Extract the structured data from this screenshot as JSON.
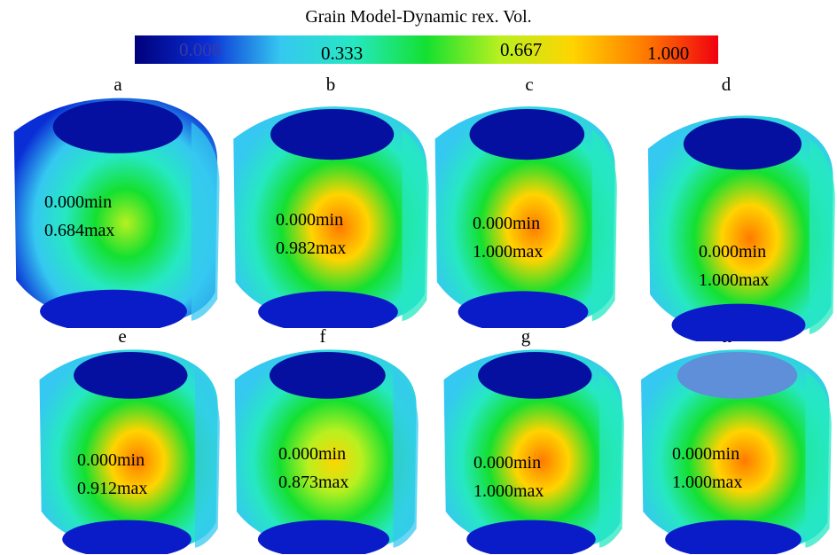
{
  "colorbar": {
    "title": "Grain Model-Dynamic rex. Vol.",
    "ticks": [
      "0.000",
      "0.333",
      "0.667",
      "1.000"
    ],
    "range": [
      0,
      1
    ],
    "colors": [
      "#00007a",
      "#0a2ed6",
      "#35c8f0",
      "#26e8c2",
      "#14e030",
      "#b8f020",
      "#ffd400",
      "#ff7a00",
      "#f00010"
    ]
  },
  "panels": [
    {
      "label": "a",
      "min": "0.000min",
      "max": "0.684max",
      "peak": 0.684
    },
    {
      "label": "b",
      "min": "0.000min",
      "max": "0.982max",
      "peak": 0.982
    },
    {
      "label": "c",
      "min": "0.000min",
      "max": "1.000max",
      "peak": 1.0
    },
    {
      "label": "d",
      "min": "0.000min",
      "max": "1.000max",
      "peak": 1.0
    },
    {
      "label": "e",
      "min": "0.000min",
      "max": "0.912max",
      "peak": 0.912
    },
    {
      "label": "f",
      "min": "0.000min",
      "max": "0.873max",
      "peak": 0.873
    },
    {
      "label": "g",
      "min": "0.000min",
      "max": "1.000max",
      "peak": 1.0
    },
    {
      "label": "h",
      "min": "0.000min",
      "max": "1.000max",
      "peak": 1.0
    }
  ]
}
